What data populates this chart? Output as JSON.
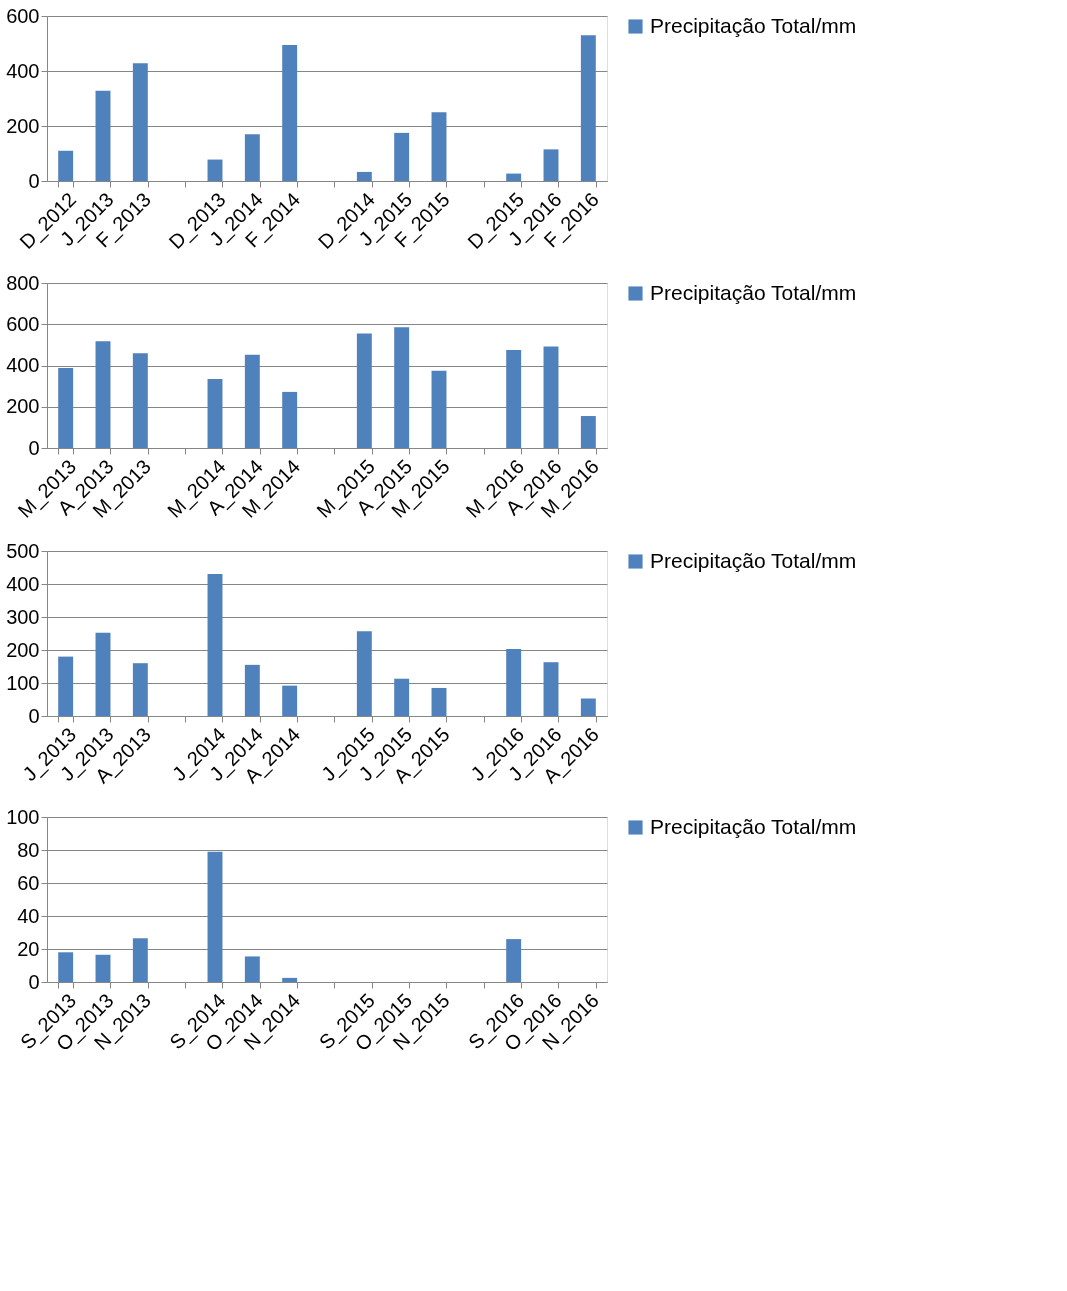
{
  "chart_data": [
    {
      "type": "bar",
      "categories": [
        "D_2012",
        "J_2013",
        "F_2013",
        null,
        "D_2013",
        "J_2014",
        "F_2014",
        null,
        "D_2014",
        "J_2015",
        "F_2015",
        null,
        "D_2015",
        "J_2016",
        "F_2016"
      ],
      "series": [
        {
          "name": "Precipitação Total/mm",
          "color": "#4f81bd",
          "values": [
            110,
            328,
            428,
            null,
            78,
            170,
            495,
            null,
            33,
            175,
            250,
            null,
            27,
            115,
            530
          ]
        }
      ],
      "ylim": [
        0,
        600
      ],
      "yticks": [
        0,
        200,
        400,
        600
      ],
      "grid": "y",
      "legend": "right"
    },
    {
      "type": "bar",
      "categories": [
        "M_2013",
        "A_2013",
        "M_2013",
        null,
        "M_2014",
        "A_2014",
        "M_2014",
        null,
        "M_2015",
        "A_2015",
        "M_2015",
        null,
        "M_2016",
        "A_2016",
        "M_2016"
      ],
      "series": [
        {
          "name": "Precipitação Total/mm",
          "color": "#4f81bd",
          "values": [
            388,
            517,
            460,
            null,
            335,
            452,
            272,
            null,
            555,
            585,
            375,
            null,
            475,
            492,
            155
          ]
        }
      ],
      "ylim": [
        0,
        800
      ],
      "yticks": [
        0,
        200,
        400,
        600,
        800
      ],
      "grid": "y",
      "legend": "right"
    },
    {
      "type": "bar",
      "categories": [
        "J_2013",
        "J_2013",
        "A_2013",
        null,
        "J_2014",
        "J_2014",
        "A_2014",
        null,
        "J_2015",
        "J_2015",
        "A_2015",
        null,
        "J_2016",
        "J_2016",
        "A_2016"
      ],
      "series": [
        {
          "name": "Precipitação Total/mm",
          "color": "#4f81bd",
          "values": [
            180,
            252,
            160,
            null,
            430,
            155,
            92,
            null,
            257,
            113,
            85,
            null,
            203,
            163,
            53
          ]
        }
      ],
      "ylim": [
        0,
        500
      ],
      "yticks": [
        0,
        100,
        200,
        300,
        400,
        500
      ],
      "grid": "y",
      "legend": "right"
    },
    {
      "type": "bar",
      "categories": [
        "S_2013",
        "O_2013",
        "N_2013",
        null,
        "S_2014",
        "O_2014",
        "N_2014",
        null,
        "S_2015",
        "O_2015",
        "N_2015",
        null,
        "S_2016",
        "O_2016",
        "N_2016"
      ],
      "series": [
        {
          "name": "Precipitação Total/mm",
          "color": "#4f81bd",
          "values": [
            18,
            16.5,
            26.5,
            null,
            79,
            15.5,
            2.5,
            null,
            null,
            null,
            null,
            null,
            26,
            null,
            null
          ]
        }
      ],
      "ylim": [
        0,
        100
      ],
      "yticks": [
        0,
        20,
        40,
        60,
        80,
        100
      ],
      "grid": "y",
      "legend": "right"
    }
  ]
}
